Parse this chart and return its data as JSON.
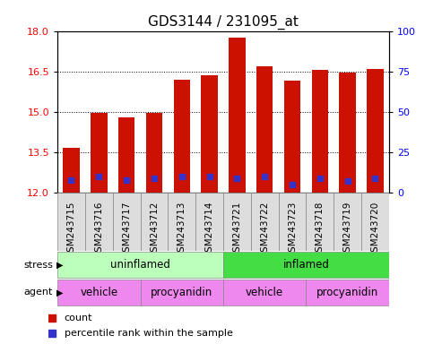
{
  "title": "GDS3144 / 231095_at",
  "samples": [
    "GSM243715",
    "GSM243716",
    "GSM243717",
    "GSM243712",
    "GSM243713",
    "GSM243714",
    "GSM243721",
    "GSM243722",
    "GSM243723",
    "GSM243718",
    "GSM243719",
    "GSM243720"
  ],
  "bar_values": [
    13.65,
    14.95,
    14.8,
    14.95,
    16.2,
    16.35,
    17.75,
    16.7,
    16.15,
    16.55,
    16.45,
    16.6
  ],
  "percentile_values": [
    8,
    10,
    8,
    9,
    10,
    10,
    9,
    10,
    5,
    9,
    7,
    9
  ],
  "bar_color": "#cc1100",
  "percentile_color": "#3333cc",
  "ymin": 12,
  "ymax": 18,
  "yticks": [
    12,
    13.5,
    15,
    16.5,
    18
  ],
  "y2min": 0,
  "y2max": 100,
  "y2ticks": [
    0,
    25,
    50,
    75,
    100
  ],
  "uninflamed_color": "#bbffbb",
  "inflamed_color": "#44dd44",
  "agent_color": "#ee88ee",
  "xlabel_gray": "#dddddd",
  "legend_count_label": "count",
  "legend_percentile_label": "percentile rank within the sample",
  "bar_width": 0.6,
  "title_fontsize": 11,
  "label_fontsize": 8.5
}
